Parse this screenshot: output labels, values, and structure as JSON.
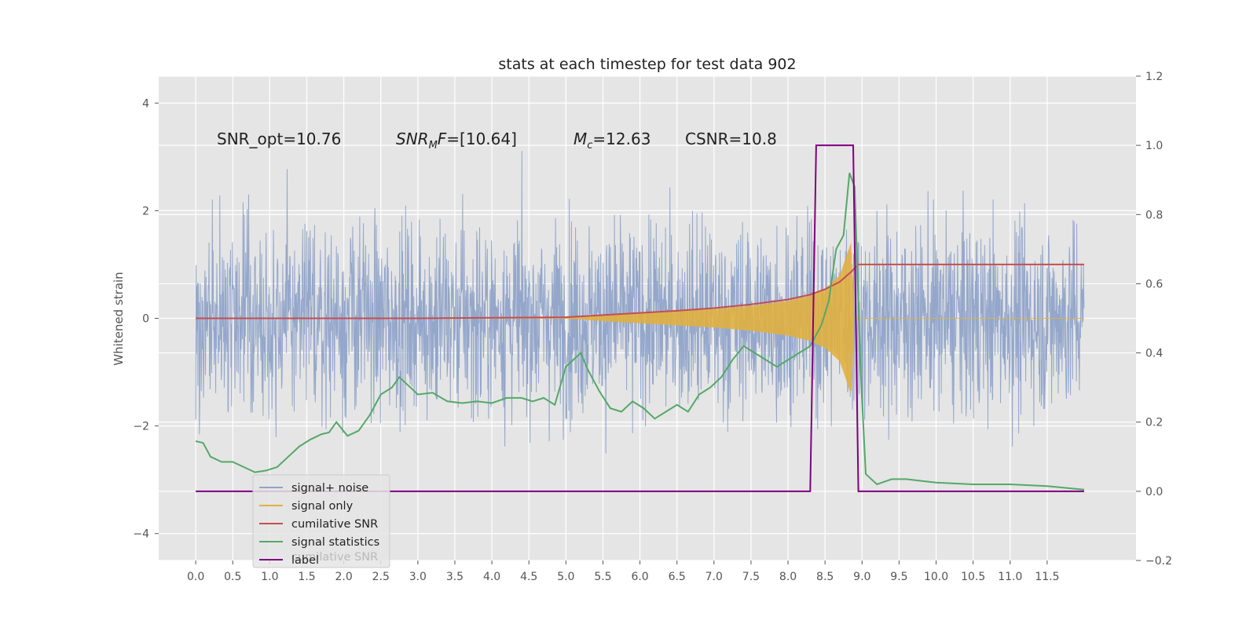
{
  "chart_data": {
    "type": "line",
    "title": "stats at each timestep for test data 902",
    "ylabel": "Whitened strain",
    "xlim": [
      -0.5,
      12.7
    ],
    "ylim": [
      -4.5,
      4.5
    ],
    "y2lim": [
      -0.2,
      1.2
    ],
    "x_ticks": [
      "0.0",
      "0.5",
      "1.0",
      "1.5",
      "2.0",
      "2.5",
      "3.0",
      "3.5",
      "4.0",
      "4.5",
      "5.0",
      "5.5",
      "6.0",
      "6.5",
      "7.0",
      "7.5",
      "8.0",
      "8.5",
      "9.0",
      "9.5",
      "10.0",
      "10.5",
      "11.0",
      "11.5"
    ],
    "y_ticks": [
      "4",
      "2",
      "0",
      "−2",
      "−4"
    ],
    "y2_ticks": [
      "1.2",
      "1.0",
      "0.8",
      "0.6",
      "0.4",
      "0.2",
      "0.0",
      "−0.2"
    ],
    "grid": true,
    "legend_position": "lower-left",
    "annotations": {
      "snr_opt": "SNR_opt=10.76",
      "snr_mf_name": "SNR",
      "snr_mf_sub": "M",
      "snr_mf_rest": "F",
      "snr_mf_value": "=[10.64]",
      "mc_name": "M",
      "mc_sub": "c",
      "mc_value": "=12.63",
      "csnr": "CSNR=10.8"
    },
    "ghost_legend_text": "cumilative SNR",
    "series": [
      {
        "name": "signal+ noise",
        "color": "#8fa3c9",
        "axis": "left",
        "description": "noisy whitened strain, roughly gaussian with amplitude about 1, peaks near ±3.5, spans x 0.0 to 12.0",
        "x_range": [
          0.0,
          12.0
        ]
      },
      {
        "name": "signal only",
        "color": "#e0b040",
        "axis": "left",
        "description": "chirp signal envelope growing from 0 near x=5.0 to about ±1.4 at x≈8.9, then zero",
        "points": [
          [
            5.0,
            0.0
          ],
          [
            5.5,
            0.05
          ],
          [
            6.0,
            0.09
          ],
          [
            6.5,
            0.13
          ],
          [
            7.0,
            0.17
          ],
          [
            7.5,
            0.23
          ],
          [
            8.0,
            0.32
          ],
          [
            8.3,
            0.42
          ],
          [
            8.5,
            0.55
          ],
          [
            8.7,
            0.8
          ],
          [
            8.85,
            1.4
          ],
          [
            8.9,
            0.0
          ],
          [
            12.0,
            0.0
          ]
        ]
      },
      {
        "name": "cumilative SNR",
        "color": "#c44e52",
        "axis": "left",
        "points": [
          [
            0.0,
            0.0
          ],
          [
            1.0,
            0.0
          ],
          [
            2.0,
            0.0
          ],
          [
            3.0,
            0.0
          ],
          [
            4.0,
            0.01
          ],
          [
            5.0,
            0.02
          ],
          [
            5.5,
            0.06
          ],
          [
            6.0,
            0.1
          ],
          [
            6.5,
            0.14
          ],
          [
            7.0,
            0.19
          ],
          [
            7.5,
            0.26
          ],
          [
            8.0,
            0.35
          ],
          [
            8.3,
            0.44
          ],
          [
            8.5,
            0.54
          ],
          [
            8.7,
            0.68
          ],
          [
            8.85,
            0.86
          ],
          [
            8.95,
            1.0
          ],
          [
            12.0,
            1.0
          ]
        ]
      },
      {
        "name": "signal statistics",
        "color": "#55a868",
        "axis": "right",
        "points": [
          [
            0.0,
            0.145
          ],
          [
            0.1,
            0.14
          ],
          [
            0.2,
            0.1
          ],
          [
            0.35,
            0.085
          ],
          [
            0.5,
            0.085
          ],
          [
            0.65,
            0.07
          ],
          [
            0.8,
            0.055
          ],
          [
            0.95,
            0.06
          ],
          [
            1.1,
            0.07
          ],
          [
            1.25,
            0.1
          ],
          [
            1.4,
            0.13
          ],
          [
            1.55,
            0.15
          ],
          [
            1.7,
            0.165
          ],
          [
            1.8,
            0.17
          ],
          [
            1.9,
            0.2
          ],
          [
            2.05,
            0.16
          ],
          [
            2.2,
            0.175
          ],
          [
            2.35,
            0.22
          ],
          [
            2.5,
            0.28
          ],
          [
            2.65,
            0.3
          ],
          [
            2.75,
            0.33
          ],
          [
            2.85,
            0.31
          ],
          [
            3.0,
            0.28
          ],
          [
            3.2,
            0.285
          ],
          [
            3.4,
            0.26
          ],
          [
            3.6,
            0.255
          ],
          [
            3.8,
            0.26
          ],
          [
            4.0,
            0.255
          ],
          [
            4.2,
            0.27
          ],
          [
            4.4,
            0.27
          ],
          [
            4.55,
            0.26
          ],
          [
            4.7,
            0.27
          ],
          [
            4.85,
            0.25
          ],
          [
            5.0,
            0.36
          ],
          [
            5.1,
            0.38
          ],
          [
            5.2,
            0.4
          ],
          [
            5.3,
            0.35
          ],
          [
            5.45,
            0.29
          ],
          [
            5.6,
            0.24
          ],
          [
            5.75,
            0.23
          ],
          [
            5.9,
            0.26
          ],
          [
            6.05,
            0.24
          ],
          [
            6.2,
            0.21
          ],
          [
            6.35,
            0.23
          ],
          [
            6.5,
            0.25
          ],
          [
            6.65,
            0.23
          ],
          [
            6.8,
            0.28
          ],
          [
            6.95,
            0.3
          ],
          [
            7.1,
            0.33
          ],
          [
            7.25,
            0.38
          ],
          [
            7.4,
            0.42
          ],
          [
            7.55,
            0.4
          ],
          [
            7.7,
            0.38
          ],
          [
            7.85,
            0.36
          ],
          [
            8.0,
            0.38
          ],
          [
            8.15,
            0.4
          ],
          [
            8.3,
            0.42
          ],
          [
            8.45,
            0.48
          ],
          [
            8.55,
            0.55
          ],
          [
            8.65,
            0.7
          ],
          [
            8.75,
            0.74
          ],
          [
            8.83,
            0.92
          ],
          [
            8.9,
            0.88
          ],
          [
            8.98,
            0.35
          ],
          [
            9.05,
            0.05
          ],
          [
            9.2,
            0.02
          ],
          [
            9.4,
            0.035
          ],
          [
            9.6,
            0.035
          ],
          [
            9.8,
            0.03
          ],
          [
            10.0,
            0.025
          ],
          [
            10.5,
            0.02
          ],
          [
            11.0,
            0.02
          ],
          [
            11.5,
            0.015
          ],
          [
            12.0,
            0.005
          ]
        ]
      },
      {
        "name": "label",
        "color": "#800080",
        "axis": "right",
        "points": [
          [
            0.0,
            0.0
          ],
          [
            8.3,
            0.0
          ],
          [
            8.38,
            1.0
          ],
          [
            8.88,
            1.0
          ],
          [
            8.95,
            0.0
          ],
          [
            12.0,
            0.0
          ]
        ]
      }
    ]
  }
}
